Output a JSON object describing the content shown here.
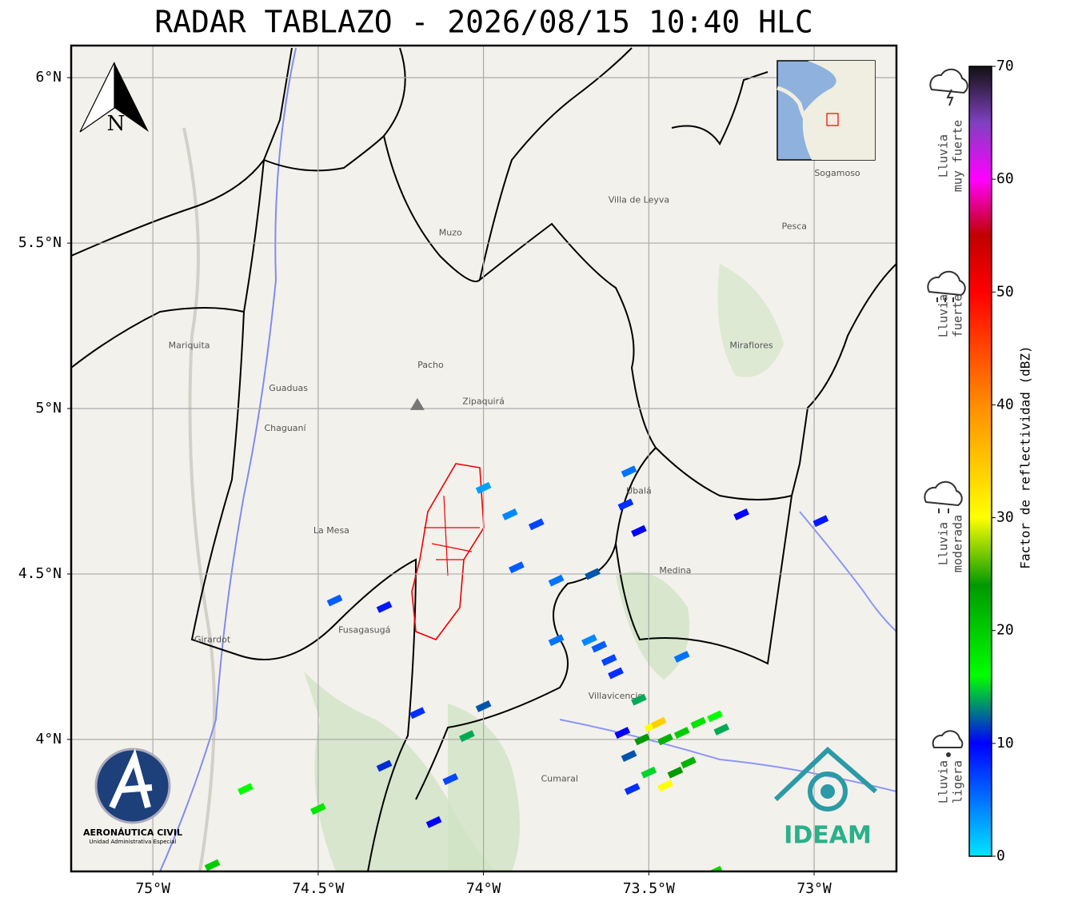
{
  "title": "RADAR TABLAZO - 2026/08/15 10:40 HLC",
  "map": {
    "xlim": [
      -75.247,
      -72.751
    ],
    "ylim": [
      3.601,
      6.097
    ],
    "grid": true,
    "xticks": [
      {
        "value": -75,
        "label": "75°W"
      },
      {
        "value": -74.5,
        "label": "74.5°W"
      },
      {
        "value": -74,
        "label": "74°W"
      },
      {
        "value": -73.5,
        "label": "73.5°W"
      },
      {
        "value": -73,
        "label": "73°W"
      }
    ],
    "yticks": [
      {
        "value": 4,
        "label": "4°N"
      },
      {
        "value": 4.5,
        "label": "4.5°N"
      },
      {
        "value": 5,
        "label": "5°N"
      },
      {
        "value": 5.5,
        "label": "5.5°N"
      },
      {
        "value": 6,
        "label": "6°N"
      }
    ],
    "radar_site": {
      "lon": -74.2,
      "lat": 5.01
    },
    "places": [
      {
        "name": "Villavicencio",
        "lon": -73.6,
        "lat": 4.13
      },
      {
        "name": "Villa de Leyva",
        "lon": -73.53,
        "lat": 5.63
      },
      {
        "name": "Sogamoso",
        "lon": -72.93,
        "lat": 5.71
      },
      {
        "name": "Zipaquirá",
        "lon": -74.0,
        "lat": 5.02
      },
      {
        "name": "Fusagasugá",
        "lon": -74.36,
        "lat": 4.33
      },
      {
        "name": "La Mesa",
        "lon": -74.46,
        "lat": 4.63
      },
      {
        "name": "Girardot",
        "lon": -74.82,
        "lat": 4.3
      },
      {
        "name": "Chaguaní",
        "lon": -74.6,
        "lat": 4.94
      },
      {
        "name": "Guaduas",
        "lon": -74.59,
        "lat": 5.06
      },
      {
        "name": "Medina",
        "lon": -73.42,
        "lat": 4.51
      },
      {
        "name": "Cumaral",
        "lon": -73.77,
        "lat": 3.88
      },
      {
        "name": "Ubalá",
        "lon": -73.53,
        "lat": 4.75
      },
      {
        "name": "Miraflores",
        "lon": -73.19,
        "lat": 5.19
      },
      {
        "name": "Pesca",
        "lon": -73.06,
        "lat": 5.55
      },
      {
        "name": "Muzo",
        "lon": -74.1,
        "lat": 5.53
      },
      {
        "name": "Pacho",
        "lon": -74.16,
        "lat": 5.13
      },
      {
        "name": "Mariquita",
        "lon": -74.89,
        "lat": 5.19
      }
    ],
    "echoes": [
      {
        "lon": -73.49,
        "lat": 4.04,
        "dbz": 30
      },
      {
        "lon": -73.47,
        "lat": 4.05,
        "dbz": 34
      },
      {
        "lon": -73.52,
        "lat": 4.0,
        "dbz": 24
      },
      {
        "lon": -73.45,
        "lat": 4.0,
        "dbz": 22
      },
      {
        "lon": -73.4,
        "lat": 4.02,
        "dbz": 20
      },
      {
        "lon": -73.35,
        "lat": 4.05,
        "dbz": 18
      },
      {
        "lon": -73.3,
        "lat": 4.07,
        "dbz": 16
      },
      {
        "lon": -73.28,
        "lat": 4.03,
        "dbz": 14
      },
      {
        "lon": -73.56,
        "lat": 3.95,
        "dbz": 12
      },
      {
        "lon": -73.5,
        "lat": 3.9,
        "dbz": 15
      },
      {
        "lon": -73.42,
        "lat": 3.9,
        "dbz": 24
      },
      {
        "lon": -73.45,
        "lat": 3.86,
        "dbz": 30
      },
      {
        "lon": -73.38,
        "lat": 3.93,
        "dbz": 22
      },
      {
        "lon": -73.55,
        "lat": 3.85,
        "dbz": 8
      },
      {
        "lon": -73.58,
        "lat": 4.02,
        "dbz": 10
      },
      {
        "lon": -73.53,
        "lat": 4.12,
        "dbz": 14
      },
      {
        "lon": -73.6,
        "lat": 4.2,
        "dbz": 8
      },
      {
        "lon": -73.65,
        "lat": 4.28,
        "dbz": 6
      },
      {
        "lon": -73.68,
        "lat": 4.3,
        "dbz": 4
      },
      {
        "lon": -73.62,
        "lat": 4.24,
        "dbz": 7
      },
      {
        "lon": -73.78,
        "lat": 4.48,
        "dbz": 5
      },
      {
        "lon": -73.9,
        "lat": 4.52,
        "dbz": 6
      },
      {
        "lon": -73.84,
        "lat": 4.65,
        "dbz": 7
      },
      {
        "lon": -73.92,
        "lat": 4.68,
        "dbz": 4
      },
      {
        "lon": -74.0,
        "lat": 4.76,
        "dbz": 3
      },
      {
        "lon": -73.57,
        "lat": 4.71,
        "dbz": 8
      },
      {
        "lon": -73.53,
        "lat": 4.63,
        "dbz": 10
      },
      {
        "lon": -73.56,
        "lat": 4.81,
        "dbz": 5
      },
      {
        "lon": -74.45,
        "lat": 4.42,
        "dbz": 6
      },
      {
        "lon": -74.3,
        "lat": 4.4,
        "dbz": 9
      },
      {
        "lon": -74.2,
        "lat": 4.08,
        "dbz": 8
      },
      {
        "lon": -74.0,
        "lat": 4.1,
        "dbz": 12
      },
      {
        "lon": -74.05,
        "lat": 4.01,
        "dbz": 14
      },
      {
        "lon": -73.78,
        "lat": 4.3,
        "dbz": 5
      },
      {
        "lon": -74.15,
        "lat": 3.75,
        "dbz": 10
      },
      {
        "lon": -74.1,
        "lat": 3.88,
        "dbz": 7
      },
      {
        "lon": -74.3,
        "lat": 3.92,
        "dbz": 11
      },
      {
        "lon": -74.72,
        "lat": 3.85,
        "dbz": 16
      },
      {
        "lon": -74.5,
        "lat": 3.79,
        "dbz": 18
      },
      {
        "lon": -74.82,
        "lat": 3.62,
        "dbz": 20
      },
      {
        "lon": -73.67,
        "lat": 4.5,
        "dbz": 12
      },
      {
        "lon": -73.4,
        "lat": 4.25,
        "dbz": 5
      },
      {
        "lon": -73.3,
        "lat": 3.6,
        "dbz": 19
      },
      {
        "lon": -72.98,
        "lat": 4.66,
        "dbz": 9
      },
      {
        "lon": -73.22,
        "lat": 4.68,
        "dbz": 10
      }
    ]
  },
  "colorbar": {
    "label": "Factor de reflectividad (dBZ)",
    "lim": [
      0,
      70
    ],
    "ticks": [
      0,
      10,
      20,
      30,
      40,
      50,
      60,
      70
    ],
    "colors": [
      {
        "value": 0,
        "color": "#00e5ff"
      },
      {
        "value": 10,
        "color": "#0000ff"
      },
      {
        "value": 16,
        "color": "#00ff00"
      },
      {
        "value": 24,
        "color": "#009900"
      },
      {
        "value": 30,
        "color": "#ffff00"
      },
      {
        "value": 40,
        "color": "#ff8c00"
      },
      {
        "value": 50,
        "color": "#ff0000"
      },
      {
        "value": 55,
        "color": "#c00000"
      },
      {
        "value": 60,
        "color": "#ff00ff"
      },
      {
        "value": 65,
        "color": "#8040c0"
      },
      {
        "value": 70,
        "color": "#111111"
      }
    ]
  },
  "legend": [
    {
      "lines": [
        "Lluvia",
        "muy fuerte"
      ]
    },
    {
      "lines": [
        "Lluvia",
        "fuerte"
      ]
    },
    {
      "lines": [
        "Lluvia",
        "moderada"
      ]
    },
    {
      "lines": [
        "Lluvia",
        "ligera"
      ]
    }
  ],
  "north": "N",
  "logos": {
    "aerocivil": "AERONÁUTICA CIVIL",
    "aerocivil_sub": "Unidad Administrativa Especial",
    "ideam": "IDEAM"
  }
}
